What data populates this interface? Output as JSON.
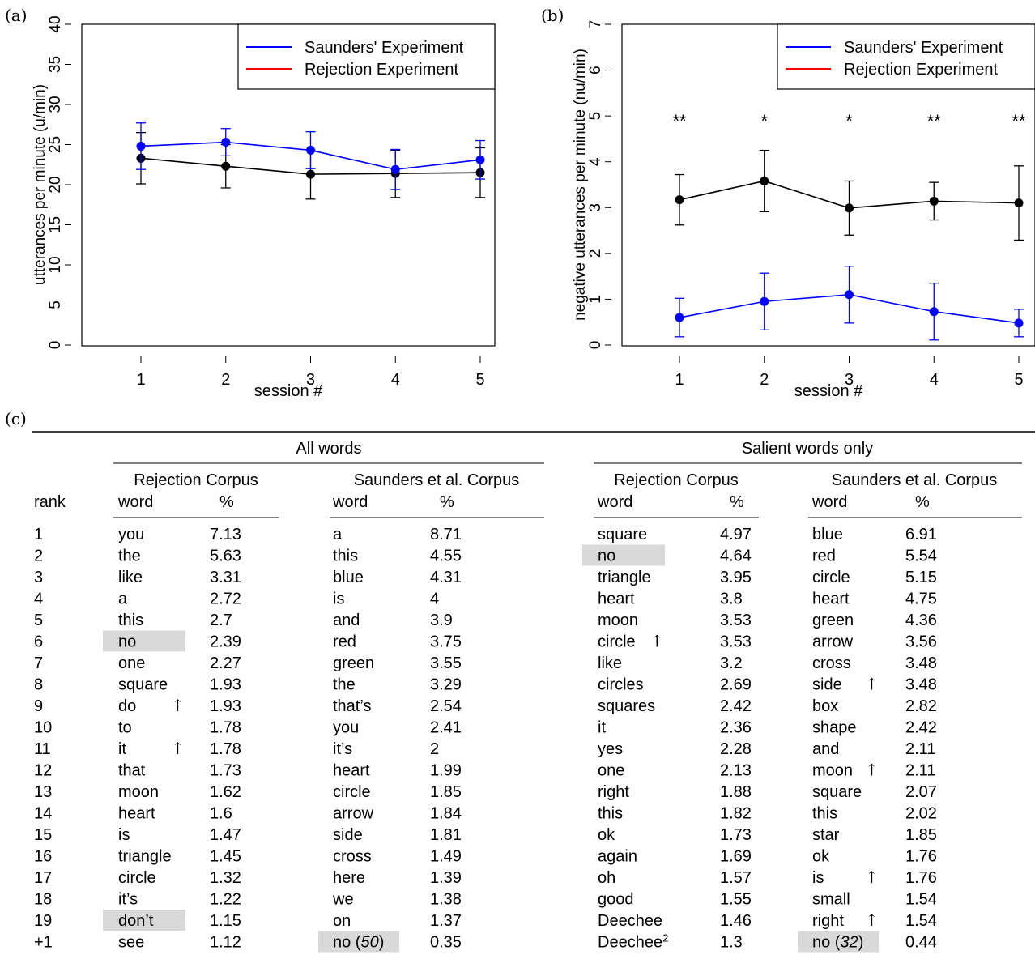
{
  "panel_labels": {
    "a": "(a)",
    "b": "(b)",
    "c": "(c)"
  },
  "legend": {
    "saunders": "Saunders' Experiment",
    "rejection": "Rejection Experiment",
    "saunders_color": "#0000ff",
    "rejection_color": "#ff0000",
    "marker_color_rejection": "#000000"
  },
  "chart_data": [
    {
      "type": "line",
      "panel": "(a)",
      "xlabel": "session #",
      "ylabel": "utterances per minute (u/min)",
      "x": [
        1,
        2,
        3,
        4,
        5
      ],
      "ylim": [
        0,
        40
      ],
      "yticks": [
        0,
        5,
        10,
        15,
        20,
        25,
        30,
        35,
        40
      ],
      "series": [
        {
          "name": "Saunders' Experiment",
          "color": "#0000ff",
          "values": [
            24.8,
            25.3,
            24.3,
            21.9,
            23.1
          ],
          "err_upper": [
            27.7,
            27.0,
            26.6,
            24.4,
            25.5
          ],
          "err_lower": [
            21.9,
            23.6,
            22.0,
            19.4,
            20.7
          ]
        },
        {
          "name": "Rejection Experiment",
          "color": "#000000",
          "values": [
            23.3,
            22.3,
            21.3,
            21.4,
            21.5
          ],
          "err_upper": [
            26.5,
            25.0,
            24.3,
            24.3,
            24.6
          ],
          "err_lower": [
            20.1,
            19.6,
            18.2,
            18.4,
            18.4
          ]
        }
      ],
      "annotations": []
    },
    {
      "type": "line",
      "panel": "(b)",
      "xlabel": "session #",
      "ylabel": "negative utterances per minute (nu/min)",
      "x": [
        1,
        2,
        3,
        4,
        5
      ],
      "ylim": [
        0,
        7
      ],
      "yticks": [
        0,
        1,
        2,
        3,
        4,
        5,
        6,
        7
      ],
      "series": [
        {
          "name": "Saunders' Experiment",
          "color": "#0000ff",
          "values": [
            0.6,
            0.95,
            1.1,
            0.73,
            0.48
          ],
          "err_upper": [
            1.02,
            1.57,
            1.72,
            1.35,
            0.78
          ],
          "err_lower": [
            0.18,
            0.33,
            0.48,
            0.11,
            0.18
          ]
        },
        {
          "name": "Rejection Experiment",
          "color": "#000000",
          "values": [
            3.17,
            3.58,
            2.99,
            3.14,
            3.1
          ],
          "err_upper": [
            3.72,
            4.25,
            3.58,
            3.55,
            3.91
          ],
          "err_lower": [
            2.62,
            2.91,
            2.4,
            2.73,
            2.29
          ]
        }
      ],
      "annotations": [
        "**",
        "*",
        "*",
        "**",
        "**"
      ],
      "annotation_y": 5
    },
    {
      "type": "table",
      "panel": "(c)",
      "groups": [
        "All words",
        "Salient words only"
      ],
      "subgroups": [
        "Rejection Corpus",
        "Saunders et al. Corpus",
        "Rejection Corpus",
        "Saunders et al. Corpus"
      ],
      "col_word": "word",
      "col_pct": "%",
      "rank_header": "rank",
      "ranks": [
        "1",
        "2",
        "3",
        "4",
        "5",
        "6",
        "7",
        "8",
        "9",
        "10",
        "11",
        "12",
        "13",
        "14",
        "15",
        "16",
        "17",
        "18",
        "19",
        "+1"
      ],
      "columns": [
        {
          "rows": [
            {
              "w": "you",
              "p": "7.13"
            },
            {
              "w": "the",
              "p": "5.63"
            },
            {
              "w": "like",
              "p": "3.31"
            },
            {
              "w": "a",
              "p": "2.72"
            },
            {
              "w": "this",
              "p": "2.7"
            },
            {
              "w": "no",
              "p": "2.39",
              "hl": true
            },
            {
              "w": "one",
              "p": "2.27"
            },
            {
              "w": "square",
              "p": "1.93"
            },
            {
              "w": "do",
              "p": "1.93",
              "up": true
            },
            {
              "w": "to",
              "p": "1.78"
            },
            {
              "w": "it",
              "p": "1.78",
              "up": true
            },
            {
              "w": "that",
              "p": "1.73"
            },
            {
              "w": "moon",
              "p": "1.62"
            },
            {
              "w": "heart",
              "p": "1.6"
            },
            {
              "w": "is",
              "p": "1.47"
            },
            {
              "w": "triangle",
              "p": "1.45"
            },
            {
              "w": "circle",
              "p": "1.32"
            },
            {
              "w": "it’s",
              "p": "1.22"
            },
            {
              "w": "don’t",
              "p": "1.15",
              "hl": true
            },
            {
              "w": "see",
              "p": "1.12"
            }
          ]
        },
        {
          "rows": [
            {
              "w": "a",
              "p": "8.71"
            },
            {
              "w": "this",
              "p": "4.55"
            },
            {
              "w": "blue",
              "p": "4.31"
            },
            {
              "w": "is",
              "p": "4"
            },
            {
              "w": "and",
              "p": "3.9"
            },
            {
              "w": "red",
              "p": "3.75"
            },
            {
              "w": "green",
              "p": "3.55"
            },
            {
              "w": "the",
              "p": "3.29"
            },
            {
              "w": "that’s",
              "p": "2.54"
            },
            {
              "w": "you",
              "p": "2.41"
            },
            {
              "w": "it’s",
              "p": "2"
            },
            {
              "w": "heart",
              "p": "1.99"
            },
            {
              "w": "circle",
              "p": "1.85"
            },
            {
              "w": "arrow",
              "p": "1.84"
            },
            {
              "w": "side",
              "p": "1.81"
            },
            {
              "w": "cross",
              "p": "1.49"
            },
            {
              "w": "here",
              "p": "1.39"
            },
            {
              "w": "we",
              "p": "1.38"
            },
            {
              "w": "on",
              "p": "1.37"
            },
            {
              "w": "no",
              "n": "50",
              "p": "0.35",
              "hl": true
            }
          ]
        },
        {
          "rows": [
            {
              "w": "square",
              "p": "4.97"
            },
            {
              "w": "no",
              "p": "4.64",
              "hl": true
            },
            {
              "w": "triangle",
              "p": "3.95"
            },
            {
              "w": "heart",
              "p": "3.8"
            },
            {
              "w": "moon",
              "p": "3.53"
            },
            {
              "w": "circle",
              "p": "3.53",
              "up": true
            },
            {
              "w": "like",
              "p": "3.2"
            },
            {
              "w": "circles",
              "p": "2.69"
            },
            {
              "w": "squares",
              "p": "2.42"
            },
            {
              "w": "it",
              "p": "2.36"
            },
            {
              "w": "yes",
              "p": "2.28"
            },
            {
              "w": "one",
              "p": "2.13"
            },
            {
              "w": "right",
              "p": "1.88"
            },
            {
              "w": "this",
              "p": "1.82"
            },
            {
              "w": "ok",
              "p": "1.73"
            },
            {
              "w": "again",
              "p": "1.69"
            },
            {
              "w": "oh",
              "p": "1.57"
            },
            {
              "w": "good",
              "p": "1.55"
            },
            {
              "w": "Deechee",
              "p": "1.46"
            },
            {
              "w": "Deechee",
              "sup": "2",
              "p": "1.3"
            }
          ]
        },
        {
          "rows": [
            {
              "w": "blue",
              "p": "6.91"
            },
            {
              "w": "red",
              "p": "5.54"
            },
            {
              "w": "circle",
              "p": "5.15"
            },
            {
              "w": "heart",
              "p": "4.75"
            },
            {
              "w": "green",
              "p": "4.36"
            },
            {
              "w": "arrow",
              "p": "3.56"
            },
            {
              "w": "cross",
              "p": "3.48"
            },
            {
              "w": "side",
              "p": "3.48",
              "up": true
            },
            {
              "w": "box",
              "p": "2.82"
            },
            {
              "w": "shape",
              "p": "2.42"
            },
            {
              "w": "and",
              "p": "2.11"
            },
            {
              "w": "moon",
              "p": "2.11",
              "up": true
            },
            {
              "w": "square",
              "p": "2.07"
            },
            {
              "w": "this",
              "p": "2.02"
            },
            {
              "w": "star",
              "p": "1.85"
            },
            {
              "w": "ok",
              "p": "1.76"
            },
            {
              "w": "is",
              "p": "1.76",
              "up": true
            },
            {
              "w": "small",
              "p": "1.54"
            },
            {
              "w": "right",
              "p": "1.54",
              "up": true
            },
            {
              "w": "no",
              "n": "32",
              "p": "0.44",
              "hl": true
            }
          ]
        }
      ],
      "arrow_glyph": "↑"
    }
  ]
}
